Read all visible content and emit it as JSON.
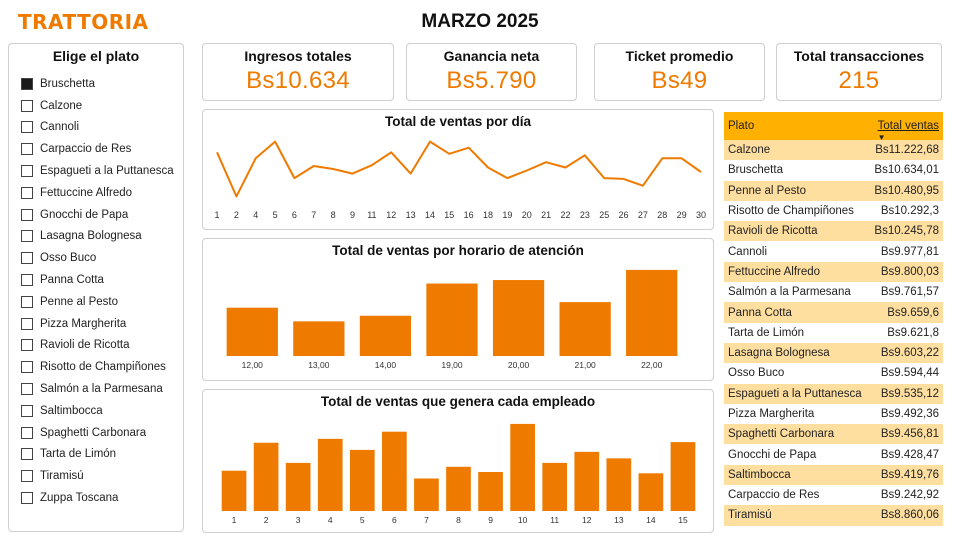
{
  "brand": "TRATTORIA",
  "month_title": "MARZO 2025",
  "slicer": {
    "title": "Elige el plato",
    "items": [
      {
        "label": "Bruschetta",
        "checked": true
      },
      {
        "label": "Calzone",
        "checked": false
      },
      {
        "label": "Cannoli",
        "checked": false
      },
      {
        "label": "Carpaccio de Res",
        "checked": false
      },
      {
        "label": "Espagueti a la Puttanesca",
        "checked": false
      },
      {
        "label": "Fettuccine Alfredo",
        "checked": false
      },
      {
        "label": "Gnocchi de Papa",
        "checked": false
      },
      {
        "label": "Lasagna Bolognesa",
        "checked": false
      },
      {
        "label": "Osso Buco",
        "checked": false
      },
      {
        "label": "Panna Cotta",
        "checked": false
      },
      {
        "label": "Penne al Pesto",
        "checked": false
      },
      {
        "label": "Pizza Margherita",
        "checked": false
      },
      {
        "label": "Ravioli de Ricotta",
        "checked": false
      },
      {
        "label": "Risotto de Champiñones",
        "checked": false
      },
      {
        "label": "Salmón a la Parmesana",
        "checked": false
      },
      {
        "label": "Saltimbocca",
        "checked": false
      },
      {
        "label": "Spaghetti Carbonara",
        "checked": false
      },
      {
        "label": "Tarta de Limón",
        "checked": false
      },
      {
        "label": "Tiramisú",
        "checked": false
      },
      {
        "label": "Zuppa Toscana",
        "checked": false
      }
    ]
  },
  "kpis": [
    {
      "title": "Ingresos totales",
      "value": "Bs10.634"
    },
    {
      "title": "Ganancia neta",
      "value": "Bs5.790"
    },
    {
      "title": "Ticket promedio",
      "value": "Bs49"
    },
    {
      "title": "Total transacciones",
      "value": "215"
    }
  ],
  "colors": {
    "accent": "#EE7A00",
    "header": "#FFB000",
    "row_alt": "#FFDFA0"
  },
  "chart_data": [
    {
      "type": "line",
      "title": "Total de ventas por día",
      "x": [
        "1",
        "2",
        "4",
        "5",
        "6",
        "7",
        "8",
        "9",
        "11",
        "12",
        "13",
        "14",
        "15",
        "16",
        "18",
        "19",
        "20",
        "21",
        "22",
        "23",
        "25",
        "26",
        "27",
        "28",
        "29",
        "30"
      ],
      "values": [
        440,
        150,
        400,
        510,
        270,
        350,
        330,
        300,
        355,
        440,
        300,
        510,
        430,
        470,
        340,
        270,
        320,
        375,
        340,
        420,
        270,
        265,
        220,
        400,
        400,
        310
      ],
      "ylim": [
        100,
        560
      ]
    },
    {
      "type": "bar",
      "title": "Total de ventas por horario de atención",
      "categories": [
        "12,00",
        "13,00",
        "14,00",
        "19,00",
        "20,00",
        "21,00",
        "22,00"
      ],
      "values": [
        1380,
        990,
        1150,
        2070,
        2170,
        1540,
        2460
      ],
      "ylim": [
        0,
        2600
      ]
    },
    {
      "type": "bar",
      "title": "Total de ventas que genera cada empleado",
      "categories": [
        "1",
        "2",
        "3",
        "4",
        "5",
        "6",
        "7",
        "8",
        "9",
        "10",
        "11",
        "12",
        "13",
        "14",
        "15"
      ],
      "values": [
        620,
        1050,
        740,
        1110,
        940,
        1220,
        500,
        680,
        600,
        1340,
        740,
        910,
        810,
        580,
        1060
      ],
      "ylim": [
        0,
        1400
      ]
    }
  ],
  "table": {
    "headers": [
      "Plato",
      "Total ventas"
    ],
    "rows": [
      [
        "Calzone",
        "Bs11.222,68"
      ],
      [
        "Bruschetta",
        "Bs10.634,01"
      ],
      [
        "Penne al Pesto",
        "Bs10.480,95"
      ],
      [
        "Risotto de Champiñones",
        "Bs10.292,3"
      ],
      [
        "Ravioli de Ricotta",
        "Bs10.245,78"
      ],
      [
        "Cannoli",
        "Bs9.977,81"
      ],
      [
        "Fettuccine Alfredo",
        "Bs9.800,03"
      ],
      [
        "Salmón a la Parmesana",
        "Bs9.761,57"
      ],
      [
        "Panna Cotta",
        "Bs9.659,6"
      ],
      [
        "Tarta de Limón",
        "Bs9.621,8"
      ],
      [
        "Lasagna Bolognesa",
        "Bs9.603,22"
      ],
      [
        "Osso Buco",
        "Bs9.594,44"
      ],
      [
        "Espagueti a la Puttanesca",
        "Bs9.535,12"
      ],
      [
        "Pizza Margherita",
        "Bs9.492,36"
      ],
      [
        "Spaghetti Carbonara",
        "Bs9.456,81"
      ],
      [
        "Gnocchi de Papa",
        "Bs9.428,47"
      ],
      [
        "Saltimbocca",
        "Bs9.419,76"
      ],
      [
        "Carpaccio de Res",
        "Bs9.242,92"
      ],
      [
        "Tiramisú",
        "Bs8.860,06"
      ]
    ]
  }
}
